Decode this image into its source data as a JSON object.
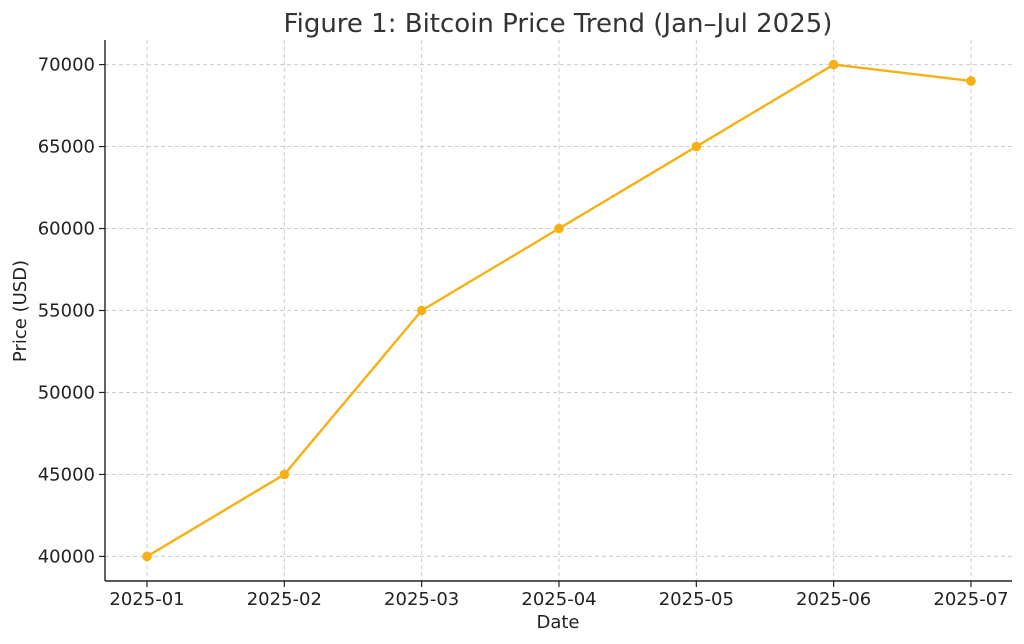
{
  "chart_data": {
    "type": "line",
    "title": "Figure 1: Bitcoin Price Trend (Jan–Jul 2025)",
    "xlabel": "Date",
    "ylabel": "Price (USD)",
    "categories": [
      "2025-01",
      "2025-02",
      "2025-03",
      "2025-04",
      "2025-05",
      "2025-06",
      "2025-07"
    ],
    "series": [
      {
        "values": [
          40000,
          45000,
          55000,
          60000,
          65000,
          70000,
          69000
        ],
        "color": "#f7b014",
        "marker": "circle"
      }
    ],
    "y_ticks": [
      40000,
      45000,
      50000,
      55000,
      60000,
      65000,
      70000
    ],
    "ylim": [
      38500,
      71500
    ],
    "grid": true,
    "legend": "none"
  }
}
